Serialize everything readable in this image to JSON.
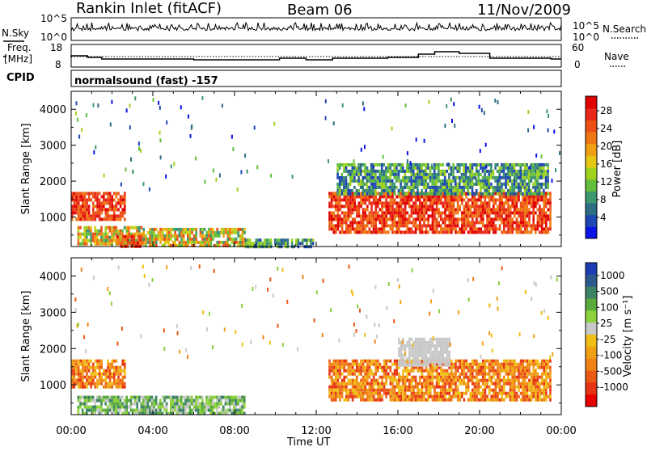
{
  "header": {
    "station": "Rankin Inlet (fitACF)",
    "beam": "Beam 06",
    "date": "11/Nov/2009"
  },
  "panels": {
    "nsky": {
      "label": "N.Sky",
      "right_label": "N.Search",
      "left_ticks": [
        "10^5",
        "10^0"
      ],
      "right_ticks": [
        "10^5",
        "10^0"
      ]
    },
    "freq": {
      "label_top": "Freq.",
      "label_bottom": "[MHz]",
      "left_ticks": [
        "18",
        "8"
      ],
      "right_ticks": [
        "60",
        "0"
      ],
      "right_label": "Nave"
    },
    "cpid": {
      "label": "CPID",
      "text": "normalsound (fast) -157"
    }
  },
  "chart_data": [
    {
      "type": "heatmap",
      "title": "",
      "xlabel": "Time UT",
      "ylabel": "Slant Range [km]",
      "x_ticks": [
        "00:00",
        "04:00",
        "08:00",
        "12:00",
        "16:00",
        "20:00",
        "00:00"
      ],
      "xlim_hours": [
        0,
        24
      ],
      "y_ticks": [
        1000,
        2000,
        3000,
        4000
      ],
      "ylim": [
        180,
        4500
      ],
      "colorbar": {
        "label": "Power [dB]",
        "ticks": [
          "4",
          "8",
          "12",
          "16",
          "20",
          "24",
          "28"
        ],
        "colors": [
          "#0a14e6",
          "#1e46b4",
          "#2d6e82",
          "#3c966e",
          "#64be3c",
          "#a0d21e",
          "#e6c814",
          "#f0a014",
          "#f07814",
          "#ec5014",
          "#e82818",
          "#e00000"
        ]
      },
      "regions": [
        {
          "t": [
            0.0,
            2.6
          ],
          "r": [
            900,
            1700
          ],
          "level": "high"
        },
        {
          "t": [
            0.3,
            3.5
          ],
          "r": [
            250,
            750
          ],
          "level": "mid"
        },
        {
          "t": [
            2.2,
            3.5
          ],
          "r": [
            180,
            500
          ],
          "level": "high"
        },
        {
          "t": [
            3.5,
            8.5
          ],
          "r": [
            200,
            700
          ],
          "level": "mid"
        },
        {
          "t": [
            8.5,
            12.0
          ],
          "r": [
            200,
            400
          ],
          "level": "low"
        },
        {
          "t": [
            12.6,
            23.5
          ],
          "r": [
            600,
            1700
          ],
          "level": "high"
        },
        {
          "t": [
            13.0,
            23.3
          ],
          "r": [
            1600,
            2500
          ],
          "level": "low"
        }
      ]
    },
    {
      "type": "heatmap",
      "title": "",
      "xlabel": "Time UT",
      "ylabel": "Slant Range [km]",
      "x_ticks": [
        "00:00",
        "04:00",
        "08:00",
        "12:00",
        "16:00",
        "20:00",
        "00:00"
      ],
      "xlim_hours": [
        0,
        24
      ],
      "y_ticks": [
        1000,
        2000,
        3000,
        4000
      ],
      "ylim": [
        180,
        4500
      ],
      "colorbar": {
        "label": "Velocity [m s⁻¹]",
        "ticks": [
          "1000",
          "500",
          "100",
          "25",
          "-25",
          "-100",
          "-500",
          "-1000"
        ],
        "colors": [
          "#1e3cb4",
          "#2d5a8c",
          "#3c8264",
          "#5aaa3c",
          "#8cd23c",
          "#c8c8c8",
          "#f0be14",
          "#f0a014",
          "#f08214",
          "#eb5a14",
          "#e83214",
          "#e60000"
        ]
      },
      "regions": [
        {
          "t": [
            0.0,
            2.6
          ],
          "r": [
            900,
            1700
          ],
          "level": "neg"
        },
        {
          "t": [
            0.3,
            8.5
          ],
          "r": [
            200,
            700
          ],
          "level": "pos"
        },
        {
          "t": [
            12.6,
            23.5
          ],
          "r": [
            600,
            1700
          ],
          "level": "neg"
        },
        {
          "t": [
            16.0,
            18.5
          ],
          "r": [
            1500,
            2300
          ],
          "level": "zero"
        }
      ]
    }
  ]
}
